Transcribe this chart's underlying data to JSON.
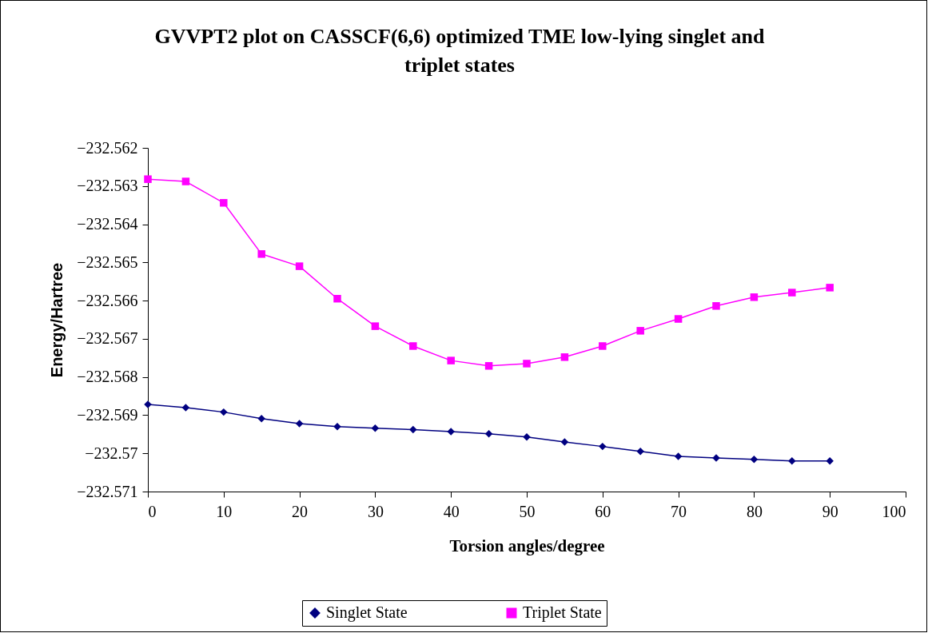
{
  "chart_data": {
    "type": "line",
    "title": "GVVPT2 plot on CASSCF(6,6) optimized TME low-lying singlet and\ntriplet states",
    "xlabel": "Torsion angles/degree",
    "ylabel": "Energy/Hartree",
    "x": [
      0,
      5,
      10,
      15,
      20,
      25,
      30,
      35,
      40,
      45,
      50,
      55,
      60,
      65,
      70,
      75,
      80,
      85,
      90
    ],
    "series": [
      {
        "name": "Singlet State",
        "color": "#000080",
        "marker": "diamond",
        "values": [
          -232.56872,
          -232.5688,
          -232.56892,
          -232.56909,
          -232.56922,
          -232.5693,
          -232.56934,
          -232.56938,
          -232.56943,
          -232.56949,
          -232.56957,
          -232.5697,
          -232.56982,
          -232.56995,
          -232.57008,
          -232.57012,
          -232.57016,
          -232.5702,
          -232.5702
        ]
      },
      {
        "name": "Triplet State",
        "color": "#ff00ff",
        "marker": "square",
        "values": [
          -232.56282,
          -232.56288,
          -232.56344,
          -232.56478,
          -232.5651,
          -232.56595,
          -232.56667,
          -232.56719,
          -232.56757,
          -232.56771,
          -232.56765,
          -232.56748,
          -232.56719,
          -232.56679,
          -232.56648,
          -232.56614,
          -232.56591,
          -232.56579,
          -232.56566
        ]
      }
    ],
    "xlim": [
      0,
      100
    ],
    "xticks": [
      0,
      10,
      20,
      30,
      40,
      50,
      60,
      70,
      80,
      90,
      100
    ],
    "ylim": [
      -232.571,
      -232.562
    ],
    "yticks": [
      -232.571,
      -232.57,
      -232.569,
      -232.568,
      -232.567,
      -232.566,
      -232.565,
      -232.564,
      -232.563,
      -232.562
    ],
    "grid": false,
    "legend": "bottom",
    "line_style": "solid"
  }
}
